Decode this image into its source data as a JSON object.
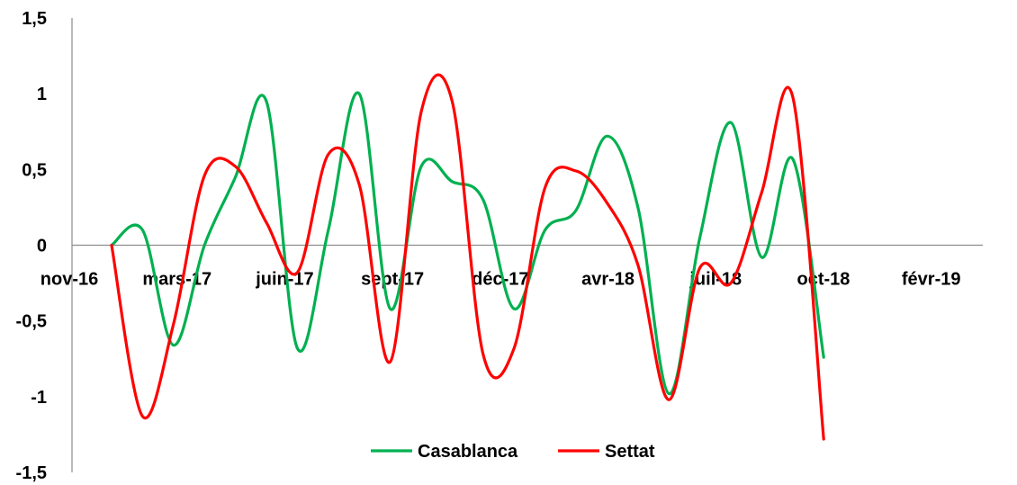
{
  "chart_data": {
    "type": "line",
    "title": "",
    "xlabel": "",
    "ylabel": "",
    "ylim": [
      -1.5,
      1.5
    ],
    "y_ticks": [
      "1,5",
      "1",
      "0,5",
      "0",
      "-0,5",
      "-1",
      "-1,5"
    ],
    "y_tick_values": [
      1.5,
      1,
      0.5,
      0,
      -0.5,
      -1,
      -1.5
    ],
    "x_tick_labels": [
      "nov-16",
      "mars-17",
      "juin-17",
      "sept-17",
      "déc-17",
      "avr-18",
      "juil-18",
      "oct-18",
      "févr-19"
    ],
    "x": [
      "nov-16",
      "déc-16",
      "janv-17",
      "févr-17",
      "mars-17",
      "avr-17",
      "mai-17",
      "juin-17",
      "juil-17",
      "août-17",
      "sept-17",
      "oct-17",
      "nov-17",
      "déc-17",
      "janv-18",
      "févr-18",
      "mars-18",
      "avr-18",
      "mai-18",
      "juin-18",
      "juil-18",
      "août-18",
      "sept-18",
      "oct-18",
      "nov-18"
    ],
    "series": [
      {
        "name": "Casablanca",
        "color": "#00b050",
        "values": [
          0,
          0.1,
          -0.66,
          0,
          0.45,
          0.95,
          -0.68,
          0.1,
          1.0,
          -0.42,
          0.52,
          0.42,
          0.3,
          -0.42,
          0.1,
          0.23,
          0.72,
          0.25,
          -0.98,
          0.05,
          0.81,
          -0.08,
          0.57,
          -0.74,
          null
        ]
      },
      {
        "name": "Settat",
        "color": "#ff0000",
        "values": [
          0,
          -1.13,
          -0.52,
          0.46,
          0.52,
          0.15,
          -0.18,
          0.6,
          0.4,
          -0.77,
          0.88,
          0.95,
          -0.72,
          -0.68,
          0.38,
          0.49,
          0.28,
          -0.13,
          -1.02,
          -0.15,
          -0.25,
          0.35,
          0.98,
          -1.28,
          null
        ]
      }
    ],
    "legend_position": "bottom",
    "grid": false
  }
}
